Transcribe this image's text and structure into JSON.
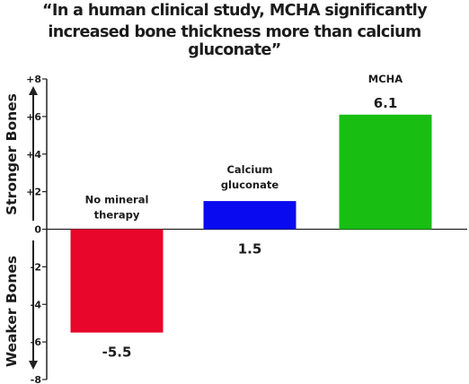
{
  "title_lines": [
    "“In a human clinical study, MCHA significantly",
    "increased bone thickness more than calcium gluconate”"
  ],
  "side_labels": {
    "upper": "Stronger Bones",
    "lower": "Weaker Bones"
  },
  "colors": {
    "no_mineral": "#e8062a",
    "calcium_gluconate": "#0a0af0",
    "mcha": "#18be12",
    "axis": "#222222"
  },
  "chart_data": {
    "type": "bar",
    "title": "“In a human clinical study, MCHA significantly increased bone thickness more than calcium gluconate”",
    "ylim": [
      -8,
      8
    ],
    "yticks": [
      -8,
      -6,
      -4,
      -2,
      0,
      2,
      4,
      6,
      8
    ],
    "ytick_labels": [
      "-8",
      "-6",
      "-4",
      "-2",
      "0",
      "+2",
      "+4",
      "+6",
      "+8"
    ],
    "grid": false,
    "categories": [
      {
        "label_lines": [
          "No mineral",
          "therapy"
        ],
        "value": -5.5,
        "value_label": "-5.5",
        "color": "#e8062a"
      },
      {
        "label_lines": [
          "Calcium",
          "gluconate"
        ],
        "value": 1.5,
        "value_label": "1.5",
        "color": "#0a0af0"
      },
      {
        "label_lines": [
          "MCHA"
        ],
        "value": 6.1,
        "value_label": "6.1",
        "color": "#18be12"
      }
    ]
  }
}
